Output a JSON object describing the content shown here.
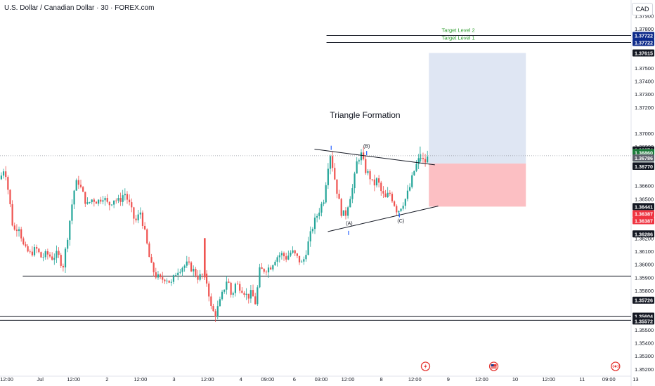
{
  "header": {
    "symbol_line": "U.S. Dollar / Canadian Dollar · 30 · FOREX.com",
    "currency": "CAD"
  },
  "colors": {
    "up": "#26a69a",
    "down": "#ef5350",
    "candle_body_down": "#b2353a",
    "target": "#2e9c2e",
    "badge_blue": "#0d2a8a",
    "badge_black": "#131722",
    "badge_red": "#ef3340",
    "badge_green": "#1b7a3a",
    "badge_gray": "#5d606b",
    "profit_zone": "#dfe6f3",
    "loss_zone": "#fcbcc0",
    "crosshair": "#9598a1"
  },
  "chart_data": {
    "type": "candlestick",
    "title": "",
    "xlabel": "",
    "ylabel": "",
    "ylim": [
      1.3507,
      1.3802
    ],
    "y_ticks": [
      "1.37900",
      "1.37800",
      "1.37500",
      "1.37400",
      "1.37300",
      "1.37200",
      "1.37000",
      "1.36900",
      "1.36600",
      "1.36500",
      "1.36200",
      "1.36100",
      "1.36000",
      "1.35900",
      "1.35800",
      "1.35500",
      "1.35400",
      "1.35300",
      "1.35200"
    ],
    "y_tick_values": [
      1.379,
      1.378,
      1.375,
      1.374,
      1.373,
      1.372,
      1.37,
      1.369,
      1.366,
      1.365,
      1.362,
      1.361,
      1.36,
      1.359,
      1.358,
      1.355,
      1.354,
      1.353,
      1.352
    ],
    "x_ticks": [
      {
        "label": "12:00",
        "t": 1
      },
      {
        "label": "Jul",
        "t": 6
      },
      {
        "label": "12:00",
        "t": 11
      },
      {
        "label": "2",
        "t": 16
      },
      {
        "label": "12:00",
        "t": 21
      },
      {
        "label": "3",
        "t": 26
      },
      {
        "label": "12:00",
        "t": 31
      },
      {
        "label": "4",
        "t": 36
      },
      {
        "label": "09:00",
        "t": 40
      },
      {
        "label": "6",
        "t": 44
      },
      {
        "label": "03:00",
        "t": 48
      },
      {
        "label": "12:00",
        "t": 52
      },
      {
        "label": "8",
        "t": 57
      },
      {
        "label": "12:00",
        "t": 62
      },
      {
        "label": "9",
        "t": 67
      },
      {
        "label": "12:00",
        "t": 72
      },
      {
        "label": "10",
        "t": 77
      },
      {
        "label": "12:00",
        "t": 82
      },
      {
        "label": "11",
        "t": 87
      },
      {
        "label": "09:00",
        "t": 91
      },
      {
        "label": "13",
        "t": 95
      }
    ],
    "x_range": [
      0,
      95.5
    ],
    "path_points": [
      [
        0,
        1.3665
      ],
      [
        0.7,
        1.3675
      ],
      [
        1.4,
        1.365
      ],
      [
        2.0,
        1.3625
      ],
      [
        2.8,
        1.363
      ],
      [
        3.6,
        1.3612
      ],
      [
        4.5,
        1.3608
      ],
      [
        5.4,
        1.3612
      ],
      [
        6.2,
        1.3605
      ],
      [
        7.0,
        1.3608
      ],
      [
        7.8,
        1.3605
      ],
      [
        8.6,
        1.3608
      ],
      [
        9.4,
        1.3598
      ],
      [
        10.2,
        1.3625
      ],
      [
        11.0,
        1.3655
      ],
      [
        11.6,
        1.3665
      ],
      [
        12.3,
        1.3655
      ],
      [
        13.0,
        1.3645
      ],
      [
        13.8,
        1.365
      ],
      [
        14.6,
        1.3648
      ],
      [
        15.4,
        1.3652
      ],
      [
        16.2,
        1.3645
      ],
      [
        17.0,
        1.365
      ],
      [
        17.8,
        1.3648
      ],
      [
        18.6,
        1.3655
      ],
      [
        19.4,
        1.3645
      ],
      [
        20.2,
        1.3632
      ],
      [
        21.0,
        1.364
      ],
      [
        21.8,
        1.362
      ],
      [
        22.5,
        1.36
      ],
      [
        23.2,
        1.3592
      ],
      [
        24.0,
        1.3588
      ],
      [
        24.8,
        1.359
      ],
      [
        25.6,
        1.3585
      ],
      [
        26.4,
        1.3595
      ],
      [
        27.2,
        1.3598
      ],
      [
        28.0,
        1.36
      ],
      [
        28.8,
        1.3596
      ],
      [
        29.6,
        1.359
      ],
      [
        30.4,
        1.3592
      ],
      [
        31.0,
        1.3585
      ],
      [
        31.6,
        1.3565
      ],
      [
        32.2,
        1.3562
      ],
      [
        32.8,
        1.357
      ],
      [
        33.4,
        1.358
      ],
      [
        34.0,
        1.359
      ],
      [
        34.6,
        1.3575
      ],
      [
        35.2,
        1.3585
      ],
      [
        35.8,
        1.3583
      ],
      [
        36.4,
        1.358
      ],
      [
        37.0,
        1.3575
      ],
      [
        37.6,
        1.3578
      ],
      [
        38.2,
        1.357
      ],
      [
        38.8,
        1.3595
      ],
      [
        39.6,
        1.3596
      ],
      [
        40.4,
        1.3598
      ],
      [
        41.2,
        1.3605
      ],
      [
        42.0,
        1.3608
      ],
      [
        42.8,
        1.3605
      ],
      [
        43.6,
        1.361
      ],
      [
        44.4,
        1.3605
      ],
      [
        45.2,
        1.36
      ],
      [
        46.0,
        1.3615
      ],
      [
        46.8,
        1.363
      ],
      [
        47.6,
        1.364
      ],
      [
        48.4,
        1.365
      ],
      [
        49.0,
        1.3675
      ],
      [
        49.4,
        1.3685
      ],
      [
        49.8,
        1.3672
      ],
      [
        50.4,
        1.3655
      ],
      [
        51.0,
        1.364
      ],
      [
        51.6,
        1.3637
      ],
      [
        52.2,
        1.365
      ],
      [
        52.8,
        1.366
      ],
      [
        53.4,
        1.368
      ],
      [
        54.0,
        1.3684
      ],
      [
        54.6,
        1.3672
      ],
      [
        55.2,
        1.3668
      ],
      [
        55.8,
        1.366
      ],
      [
        56.4,
        1.3665
      ],
      [
        57.0,
        1.3655
      ],
      [
        57.6,
        1.365
      ],
      [
        58.2,
        1.3655
      ],
      [
        58.8,
        1.3648
      ],
      [
        59.4,
        1.364
      ],
      [
        60.0,
        1.3645
      ],
      [
        60.6,
        1.365
      ],
      [
        61.2,
        1.3658
      ],
      [
        61.8,
        1.367
      ],
      [
        62.4,
        1.3678
      ],
      [
        63.0,
        1.3683
      ],
      [
        63.4,
        1.3676
      ],
      [
        63.8,
        1.3682
      ],
      [
        64.1,
        1.3679
      ]
    ],
    "horizontal_levels": [
      1.3591,
      1.35604,
      1.35572
    ],
    "triangle_upper_line": [
      [
        47,
        1.3688
      ],
      [
        65,
        1.3676
      ]
    ],
    "triangle_lower_line": [
      [
        49,
        1.3625
      ],
      [
        65.5,
        1.36445
      ]
    ],
    "target_levels": [
      {
        "label": "Target Level 2",
        "value": 1.37722
      },
      {
        "label": "Target Level 1",
        "value": 1.37722
      }
    ],
    "position": {
      "entry": 1.3677,
      "target": 1.37615,
      "stop": 1.36441,
      "t_start": 64.1,
      "t_end": 78.6
    },
    "annotations": [
      {
        "text": "Triangle Formation",
        "t": 49.3,
        "v": 1.3712,
        "kind": "title"
      },
      {
        "text": "(A)",
        "t": 52.2,
        "v": 1.363,
        "kind": "wave"
      },
      {
        "text": "(B)",
        "t": 54.8,
        "v": 1.3689,
        "kind": "wave"
      },
      {
        "text": "(C)",
        "t": 59.9,
        "v": 1.3632,
        "kind": "wave"
      }
    ],
    "wave_ticks": [
      [
        49.5,
        1.3689
      ],
      [
        52.1,
        1.3624
      ],
      [
        54.8,
        1.3685
      ],
      [
        59.7,
        1.36375
      ]
    ],
    "price_badges": [
      {
        "text": "1.37722",
        "value": 1.37722,
        "color": "badge_blue",
        "offset": -5
      },
      {
        "text": "1.37722",
        "value": 1.37722,
        "color": "badge_blue",
        "offset": 5
      },
      {
        "text": "1.37615",
        "value": 1.37615,
        "color": "badge_black",
        "offset": 0
      },
      {
        "text": "1.36874",
        "value": 1.36874,
        "color": "badge_black",
        "offset": 0
      },
      {
        "text": "1.36860",
        "value": 1.3686,
        "color": "badge_green",
        "offset": 1,
        "sub": "06:06"
      },
      {
        "text": "1.36786",
        "value": 1.36786,
        "color": "badge_gray",
        "offset": -5
      },
      {
        "text": "1.36786",
        "value": 1.36786,
        "color": "badge_gray",
        "offset": 6
      },
      {
        "text": "1.36770",
        "value": 1.3677,
        "color": "badge_black",
        "offset": 4
      },
      {
        "text": "1.36441",
        "value": 1.36441,
        "color": "badge_black",
        "offset": 0
      },
      {
        "text": "1.36387",
        "value": 1.36387,
        "color": "badge_red",
        "offset": 0
      },
      {
        "text": "1.36387",
        "value": 1.36387,
        "color": "badge_red",
        "offset": 10
      },
      {
        "text": "1.36286",
        "value": 1.36286,
        "color": "badge_black",
        "offset": 10
      },
      {
        "text": "1.35726",
        "value": 1.35726,
        "color": "badge_black",
        "offset": 0
      },
      {
        "text": "1.35604",
        "value": 1.35604,
        "color": "badge_black",
        "offset": 0
      },
      {
        "text": "1.35572",
        "value": 1.35572,
        "color": "badge_black",
        "offset": 1
      }
    ],
    "event_icons": [
      {
        "t": 63.6,
        "name": "lightning-event-icon"
      },
      {
        "t": 73.8,
        "name": "us-flag-event-icon"
      },
      {
        "t": 92.0,
        "name": "broadcast-event-icon"
      }
    ]
  }
}
